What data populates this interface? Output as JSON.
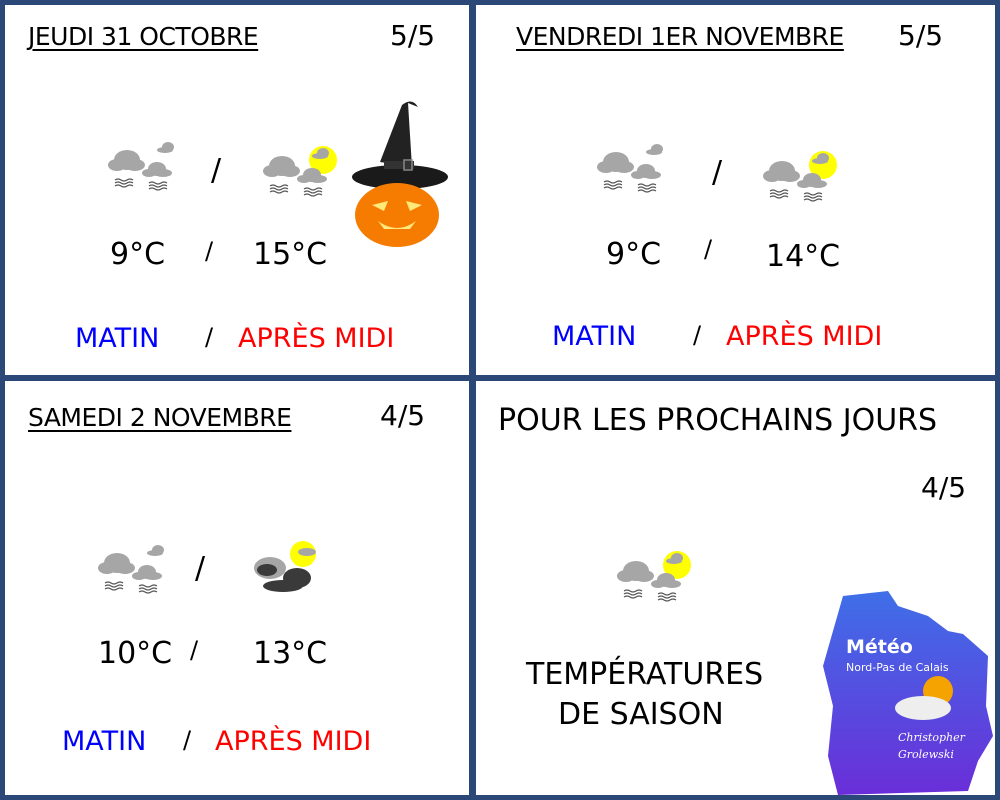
{
  "days": [
    {
      "title": "JEUDI 31 OCTOBRE",
      "score": "5/5",
      "morning_icon": "fog-cloud-icon",
      "afternoon_icon": "fog-cloud-sun-icon",
      "morning_temp": "9°C",
      "afternoon_temp": "15°C",
      "separator": "/",
      "morning_label": "MATIN",
      "afternoon_label": "APRÈS MIDI"
    },
    {
      "title": "VENDREDI 1ER NOVEMBRE",
      "score": "5/5",
      "morning_icon": "fog-cloud-icon",
      "afternoon_icon": "fog-cloud-sun-icon",
      "morning_temp": "9°C",
      "afternoon_temp": "14°C",
      "separator": "/",
      "morning_label": "MATIN",
      "afternoon_label": "APRÈS MIDI"
    },
    {
      "title": "SAMEDI 2 NOVEMBRE",
      "score": "4/5",
      "morning_icon": "fog-cloud-icon",
      "afternoon_icon": "dark-cloud-sun-icon",
      "morning_temp": "10°C",
      "afternoon_temp": "13°C",
      "separator": "/",
      "morning_label": "MATIN",
      "afternoon_label": "APRÈS MIDI"
    }
  ],
  "outlook": {
    "title": "POUR LES PROCHAINS JOURS",
    "score": "4/5",
    "icon": "fog-cloud-sun-icon",
    "line1": "TEMPÉRATURES",
    "line2": "DE SAISON"
  },
  "logo": {
    "title": "Météo",
    "subtitle": "Nord-Pas de Calais",
    "author1": "Christopher",
    "author2": "Grolewski"
  },
  "colors": {
    "border": "#2c4878",
    "morning": "#0000ff",
    "afternoon": "#ff0000",
    "cloud": "#a6a6a6",
    "sun": "#ffff00"
  }
}
